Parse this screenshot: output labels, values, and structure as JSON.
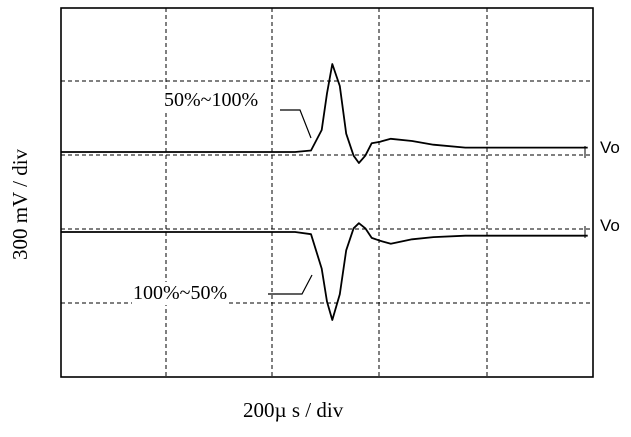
{
  "chart_data": {
    "type": "line",
    "title": "",
    "xlabel": "200µ s / div",
    "ylabel": "300 mV / div",
    "grid": true,
    "grid_divisions": {
      "x": 5,
      "y": 4
    },
    "series": [
      {
        "name": "50%~100%",
        "x": [
          0,
          1.2,
          2.2,
          2.35,
          2.45,
          2.5,
          2.55,
          2.62,
          2.68,
          2.75,
          2.8,
          2.86,
          2.92,
          3.0,
          3.1,
          3.3,
          3.5,
          3.8,
          4.5,
          4.95
        ],
        "y": [
          0,
          0,
          0,
          0.02,
          0.3,
          0.8,
          1.2,
          0.9,
          0.25,
          -0.05,
          -0.15,
          -0.05,
          0.12,
          0.14,
          0.18,
          0.15,
          0.1,
          0.06,
          0.06,
          0.06
        ]
      },
      {
        "name": "100%~50%",
        "x": [
          0,
          1.2,
          2.2,
          2.35,
          2.45,
          2.5,
          2.55,
          2.62,
          2.68,
          2.75,
          2.8,
          2.86,
          2.92,
          3.0,
          3.1,
          3.3,
          3.5,
          3.8,
          4.5,
          4.95
        ],
        "y": [
          0,
          0,
          0,
          -0.03,
          -0.5,
          -0.95,
          -1.2,
          -0.85,
          -0.25,
          0.05,
          0.12,
          0.05,
          -0.08,
          -0.12,
          -0.16,
          -0.1,
          -0.07,
          -0.05,
          -0.05,
          -0.05
        ]
      }
    ],
    "right_labels": [
      "Vo",
      "Vo"
    ]
  }
}
